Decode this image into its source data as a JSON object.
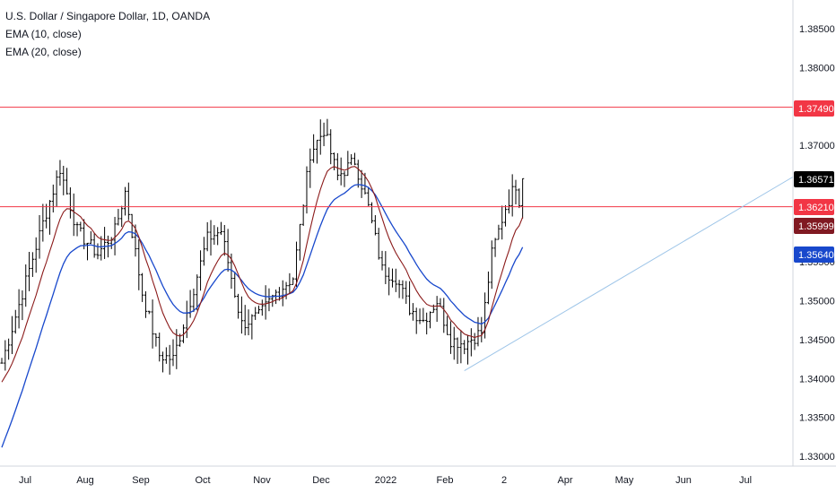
{
  "legend": {
    "title": "U.S. Dollar / Singapore Dollar, 1D, OANDA",
    "ema10": "EMA (10, close)",
    "ema20": "EMA (20, close)"
  },
  "chart_data": {
    "type": "ohlc",
    "symbol": "USD/SGD",
    "interval": "1D",
    "source": "OANDA",
    "x_axis_labels": [
      "Jul",
      "Aug",
      "Sep",
      "Oct",
      "Nov",
      "Dec",
      "2022",
      "Feb",
      "2",
      "Apr",
      "May",
      "Jun",
      "Jul"
    ],
    "y_tick_labels": [
      "1.38500",
      "1.38000",
      "1.37000",
      "1.35500",
      "1.35000",
      "1.34500",
      "1.34000",
      "1.33500",
      "1.33000"
    ],
    "ylim": [
      1.33,
      1.389
    ],
    "price_tags": [
      {
        "label": "1.37490",
        "value": 1.3749,
        "color": "#f23645",
        "role": "upper-horizontal-line"
      },
      {
        "label": "1.36571",
        "value": 1.36571,
        "color": "#000000",
        "role": "last-price"
      },
      {
        "label": "1.36210",
        "value": 1.3621,
        "color": "#f23645",
        "role": "middle-horizontal-line"
      },
      {
        "label": "1.35999",
        "value": 1.35999,
        "color": "#801922",
        "role": "ema-10"
      },
      {
        "label": "1.35640",
        "value": 1.3564,
        "color": "#1848cc",
        "role": "ema-20"
      }
    ],
    "horizontal_lines": [
      {
        "value": 1.3749,
        "color": "#f23645"
      },
      {
        "value": 1.3621,
        "color": "#f23645"
      }
    ],
    "trendline": {
      "from": {
        "bar": 135,
        "price": 1.341
      },
      "to": {
        "bar": 230,
        "price": 1.3657
      },
      "color": "#9ec5e8"
    },
    "price_path": [
      [
        0,
        1.342
      ],
      [
        6,
        1.351
      ],
      [
        12,
        1.36
      ],
      [
        17,
        1.367
      ],
      [
        22,
        1.359
      ],
      [
        28,
        1.356
      ],
      [
        33,
        1.359
      ],
      [
        36,
        1.364
      ],
      [
        41,
        1.351
      ],
      [
        46,
        1.343
      ],
      [
        50,
        1.3425
      ],
      [
        55,
        1.35
      ],
      [
        60,
        1.358
      ],
      [
        64,
        1.359
      ],
      [
        70,
        1.347
      ],
      [
        75,
        1.348
      ],
      [
        80,
        1.351
      ],
      [
        85,
        1.353
      ],
      [
        90,
        1.369
      ],
      [
        94,
        1.372
      ],
      [
        98,
        1.366
      ],
      [
        103,
        1.368
      ],
      [
        107,
        1.362
      ],
      [
        111,
        1.354
      ],
      [
        115,
        1.353
      ],
      [
        119,
        1.349
      ],
      [
        123,
        1.3475
      ],
      [
        127,
        1.35
      ],
      [
        131,
        1.345
      ],
      [
        135,
        1.3445
      ],
      [
        140,
        1.346
      ],
      [
        143,
        1.356
      ],
      [
        147,
        1.362
      ],
      [
        150,
        1.365
      ],
      [
        152,
        1.361
      ]
    ],
    "ema10_last": 1.35999,
    "ema20_last": 1.3564,
    "grid": false
  }
}
